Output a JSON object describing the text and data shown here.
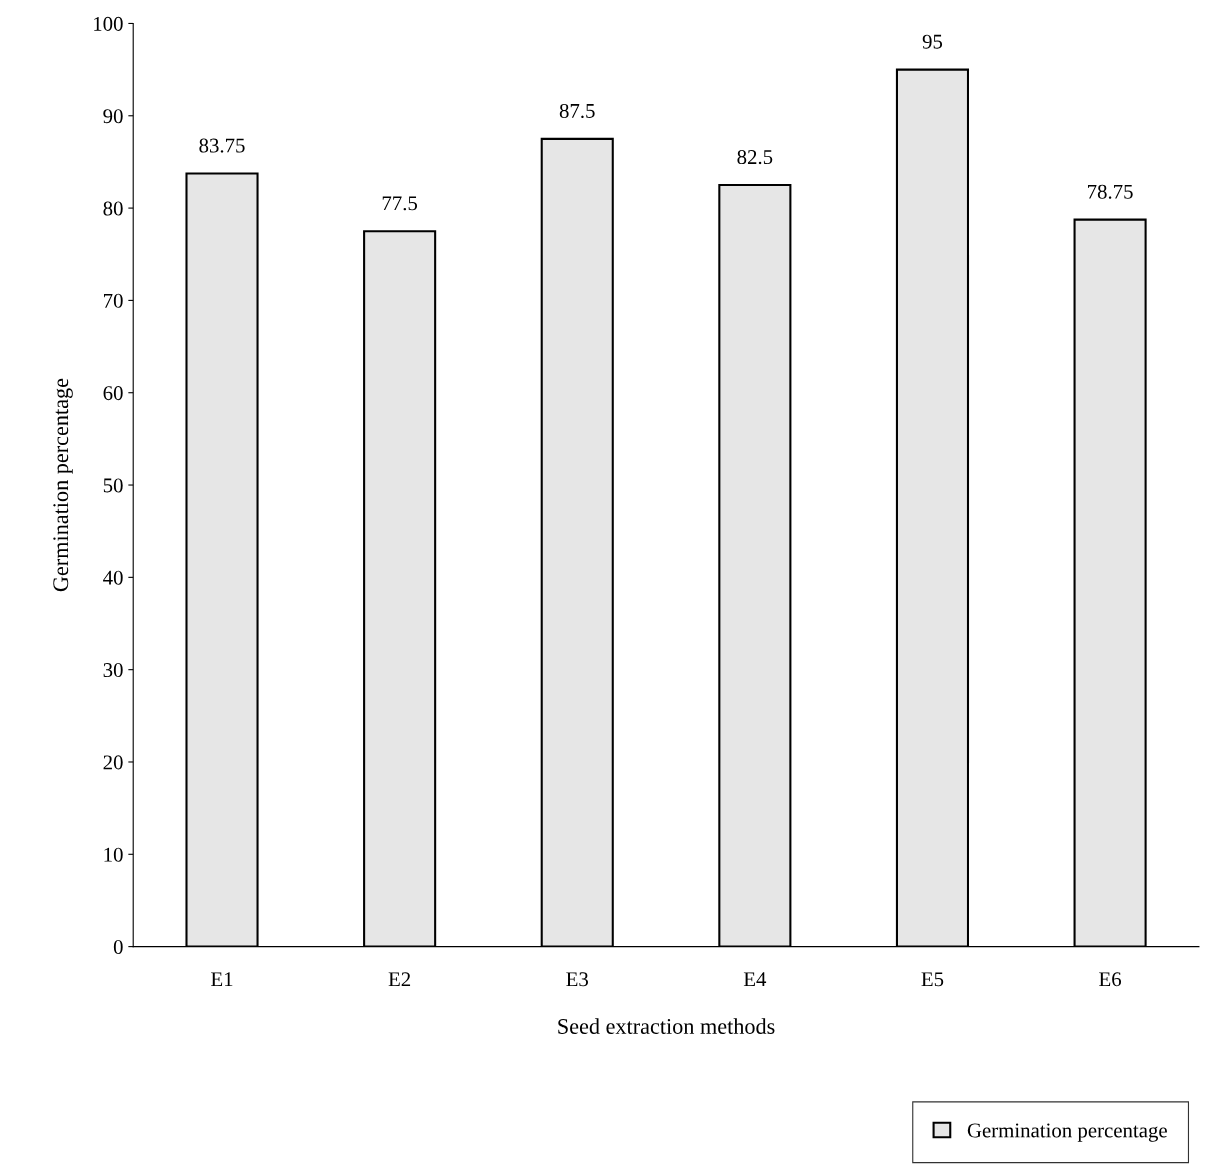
{
  "chart_data": {
    "type": "bar",
    "xlabel": "Seed extraction methods",
    "ylabel": "Germination percentage",
    "categories": [
      "E1",
      "E2",
      "E3",
      "E4",
      "E5",
      "E6"
    ],
    "series": [
      {
        "name": "Germination percentage",
        "color": "#e6e6e6",
        "values": [
          83.75,
          77.5,
          87.5,
          82.5,
          95,
          78.75
        ]
      }
    ],
    "ylim": [
      0,
      100
    ],
    "yticks": [
      0,
      10,
      20,
      30,
      40,
      50,
      60,
      70,
      80,
      90,
      100
    ],
    "data_labels": true,
    "grid": false,
    "legend": "bottom right"
  }
}
